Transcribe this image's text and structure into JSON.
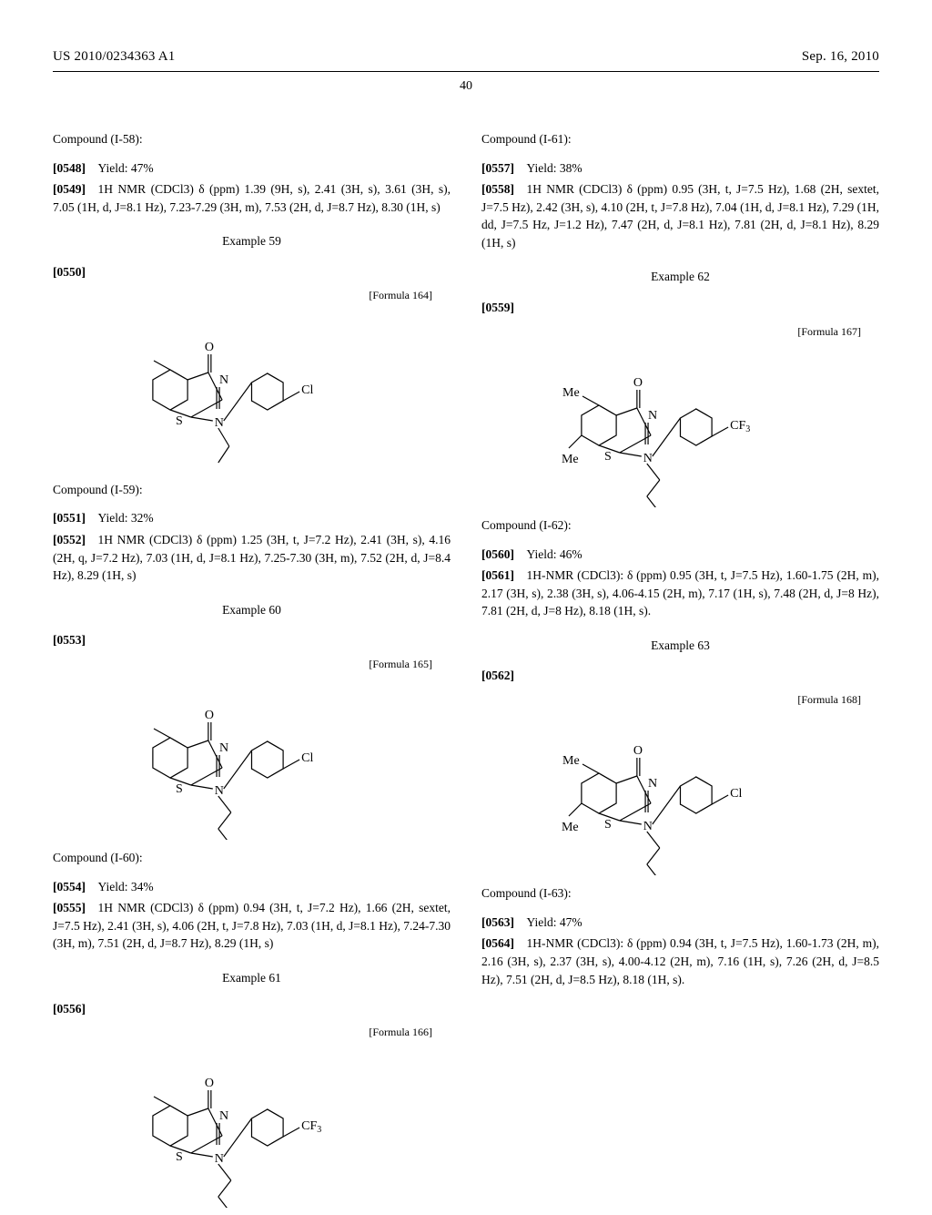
{
  "header": {
    "left": "US 2010/0234363 A1",
    "right": "Sep. 16, 2010",
    "pageNumber": "40"
  },
  "leftColumn": {
    "items": [
      {
        "kind": "compound",
        "text": "Compound (I-58):"
      },
      {
        "kind": "para",
        "num": "[0548]",
        "text": "Yield: 47%"
      },
      {
        "kind": "para",
        "num": "[0549]",
        "text": "1H NMR (CDCl3) δ (ppm) 1.39 (9H, s), 2.41 (3H, s), 3.61 (3H, s), 7.05 (1H, d, J=8.1 Hz), 7.23-7.29 (3H, m), 7.53 (2H, d, J=8.7 Hz), 8.30 (1H, s)"
      },
      {
        "kind": "example",
        "text": "Example 59"
      },
      {
        "kind": "para",
        "num": "[0550]",
        "text": ""
      },
      {
        "kind": "formula",
        "label": "[Formula 164]",
        "structure": "s1",
        "subst": "Cl",
        "chain": "short"
      },
      {
        "kind": "compound",
        "text": "Compound (I-59):"
      },
      {
        "kind": "para",
        "num": "[0551]",
        "text": "Yield: 32%"
      },
      {
        "kind": "para",
        "num": "[0552]",
        "text": "1H NMR (CDCl3) δ (ppm) 1.25 (3H, t, J=7.2 Hz), 2.41 (3H, s), 4.16 (2H, q, J=7.2 Hz), 7.03 (1H, d, J=8.1 Hz), 7.25-7.30 (3H, m), 7.52 (2H, d, J=8.4 Hz), 8.29 (1H, s)"
      },
      {
        "kind": "example",
        "text": "Example 60"
      },
      {
        "kind": "para",
        "num": "[0553]",
        "text": ""
      },
      {
        "kind": "formula",
        "label": "[Formula 165]",
        "structure": "s1",
        "subst": "Cl",
        "chain": "long"
      },
      {
        "kind": "compound",
        "text": "Compound (I-60):"
      },
      {
        "kind": "para",
        "num": "[0554]",
        "text": "Yield: 34%"
      },
      {
        "kind": "para",
        "num": "[0555]",
        "text": "1H NMR (CDCl3) δ (ppm) 0.94 (3H, t, J=7.2 Hz), 1.66 (2H, sextet, J=7.5 Hz), 2.41 (3H, s), 4.06 (2H, t, J=7.8 Hz), 7.03 (1H, d, J=8.1 Hz), 7.24-7.30 (3H, m), 7.51 (2H, d, J=8.7 Hz), 8.29 (1H, s)"
      },
      {
        "kind": "example",
        "text": "Example 61"
      },
      {
        "kind": "para",
        "num": "[0556]",
        "text": ""
      },
      {
        "kind": "formula",
        "label": "[Formula 166]",
        "structure": "s1",
        "subst": "CF3",
        "chain": "long"
      }
    ]
  },
  "rightColumn": {
    "items": [
      {
        "kind": "compound",
        "text": "Compound (I-61):"
      },
      {
        "kind": "para",
        "num": "[0557]",
        "text": "Yield: 38%"
      },
      {
        "kind": "para",
        "num": "[0558]",
        "text": "1H NMR (CDCl3) δ (ppm) 0.95 (3H, t, J=7.5 Hz), 1.68 (2H, sextet, J=7.5 Hz), 2.42 (3H, s), 4.10 (2H, t, J=7.8 Hz), 7.04 (1H, d, J=8.1 Hz), 7.29 (1H, dd, J=7.5 Hz, J=1.2 Hz), 7.47 (2H, d, J=8.1 Hz), 7.81 (2H, d, J=8.1 Hz), 8.29 (1H, s)"
      },
      {
        "kind": "example",
        "text": "Example 62"
      },
      {
        "kind": "para",
        "num": "[0559]",
        "text": ""
      },
      {
        "kind": "formula",
        "label": "[Formula 167]",
        "structure": "s2",
        "subst": "CF3",
        "chain": "long"
      },
      {
        "kind": "compound",
        "text": "Compound (I-62):"
      },
      {
        "kind": "para",
        "num": "[0560]",
        "text": "Yield: 46%"
      },
      {
        "kind": "para",
        "num": "[0561]",
        "text": "1H-NMR (CDCl3): δ (ppm) 0.95 (3H, t, J=7.5 Hz), 1.60-1.75 (2H, m), 2.17 (3H, s), 2.38 (3H, s), 4.06-4.15 (2H, m), 7.17 (1H, s), 7.48 (2H, d, J=8 Hz), 7.81 (2H, d, J=8 Hz), 8.18 (1H, s)."
      },
      {
        "kind": "example",
        "text": "Example 63"
      },
      {
        "kind": "para",
        "num": "[0562]",
        "text": ""
      },
      {
        "kind": "formula",
        "label": "[Formula 168]",
        "structure": "s2",
        "subst": "Cl",
        "chain": "long"
      },
      {
        "kind": "compound",
        "text": "Compound (I-63):"
      },
      {
        "kind": "para",
        "num": "[0563]",
        "text": "Yield: 47%"
      },
      {
        "kind": "para",
        "num": "[0564]",
        "text": "1H-NMR (CDCl3): δ (ppm) 0.94 (3H, t, J=7.5 Hz), 1.60-1.73 (2H, m), 2.16 (3H, s), 2.37 (3H, s), 4.00-4.12 (2H, m), 7.16 (1H, s), 7.26 (2H, d, J=8.5 Hz), 7.51 (2H, d, J=8.5 Hz), 8.18 (1H, s)."
      }
    ]
  },
  "structures": {
    "lineColor": "#000000",
    "strokeWidth": 1.2,
    "fontFamily": "Times New Roman"
  }
}
